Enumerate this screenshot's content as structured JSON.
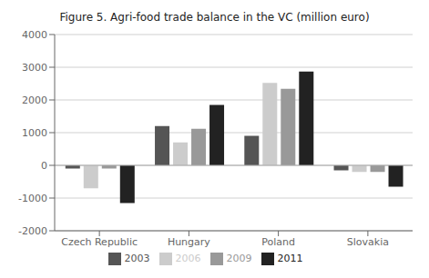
{
  "chart_data": {
    "type": "bar",
    "title": "Figure 5. Agri-food trade balance in the VC (million euro)",
    "categories": [
      "Czech Republic",
      "Hungary",
      "Poland",
      "Slovakia"
    ],
    "series": [
      {
        "name": "2003",
        "color": "#555555",
        "values": [
          -100,
          1200,
          900,
          -150
        ]
      },
      {
        "name": "2006",
        "color": "#cccccc",
        "values": [
          -700,
          700,
          2520,
          -200
        ]
      },
      {
        "name": "2009",
        "color": "#999999",
        "values": [
          -100,
          1120,
          2340,
          -200
        ]
      },
      {
        "name": "2011",
        "color": "#222222",
        "values": [
          -1150,
          1850,
          2870,
          -650
        ]
      }
    ],
    "ylim": [
      -2000,
      4000
    ],
    "yticks": [
      -2000,
      -1000,
      0,
      1000,
      2000,
      3000,
      4000
    ],
    "grid": true,
    "legend": "bottom"
  }
}
